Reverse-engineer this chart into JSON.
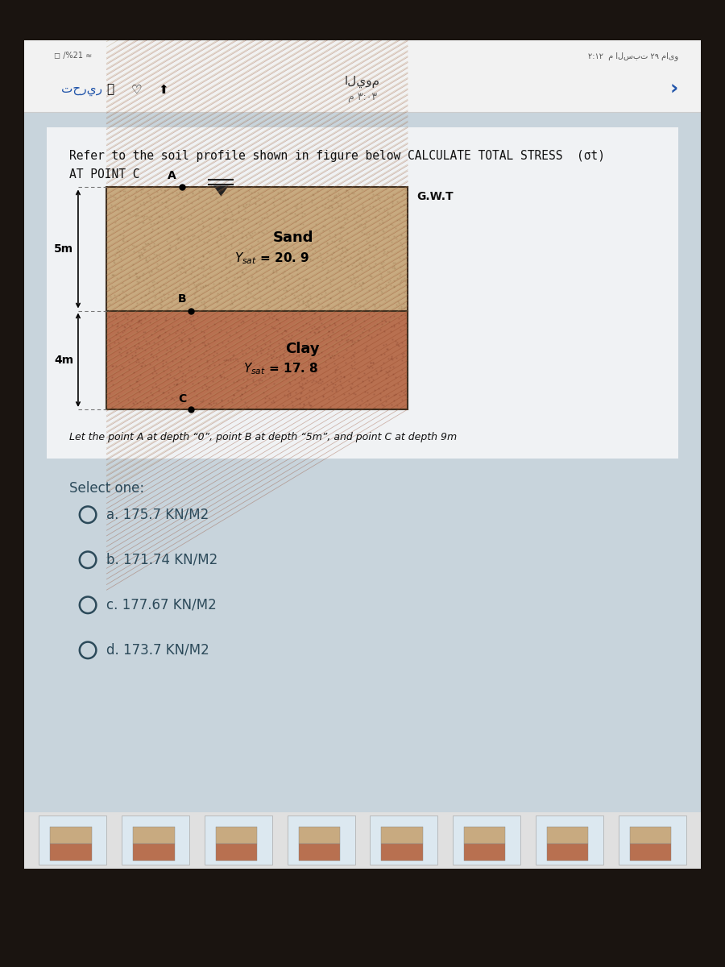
{
  "bg_outer": "#1a1410",
  "tablet_bg": "#c8d4dc",
  "header_bg": "#f0f0f0",
  "white_content_bg": "#e8eef2",
  "question_bg": "#dce6ee",
  "sand_color": "#c8aa80",
  "clay_color": "#b87050",
  "border_color": "#403020",
  "question_line1": "Refer to the soil profile shown in figure below CALCULATE TOTAL STRESS  (σt)",
  "question_line2": "AT POINT C",
  "gwt_label": "G.W.T",
  "sand_label": "Sand",
  "sand_ysat_text": "Y",
  "sand_ysat_sub": "sat",
  "sand_ysat_val": " = 20. 9",
  "clay_label": "Clay",
  "clay_ysat_val": " = 17. 8",
  "depth_sand": "5m",
  "depth_clay": "4m",
  "point_a": "A",
  "point_b": "B",
  "point_c": "C",
  "caption": "Let the point A at depth “0”, point B at depth “5m”, and point C at depth 9m",
  "select_one": "Select one:",
  "options": [
    "a. 175.7 KN/M2",
    "b. 171.74 KN/M2",
    "c. 177.67 KN/M2",
    "d. 173.7 KN/M2"
  ],
  "arabic_right": "م ۲:۱۲  السبت ۲۹ مايو",
  "arabic_center_top": "اليوم",
  "arabic_center_bot": "م ۳:۰۳",
  "arabic_left": "تحرير",
  "text_blue": "#2255aa",
  "text_dark": "#111111",
  "text_gray": "#444444",
  "option_color": "#2c4a5a",
  "sand_texture_color": "#9a7850",
  "clay_texture_color": "#804030"
}
